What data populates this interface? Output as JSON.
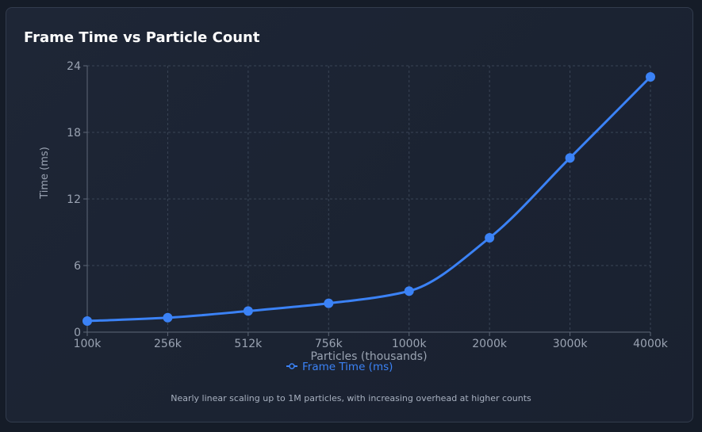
{
  "chart_data": {
    "type": "line",
    "title": "Frame Time vs Particle Count",
    "xlabel": "Particles (thousands)",
    "ylabel": "Time (ms)",
    "categories": [
      "100k",
      "256k",
      "512k",
      "756k",
      "1000k",
      "2000k",
      "3000k",
      "4000k"
    ],
    "series": [
      {
        "name": "Frame Time (ms)",
        "values": [
          1.0,
          1.3,
          1.9,
          2.6,
          3.7,
          8.5,
          15.7,
          23.0
        ]
      }
    ],
    "ylim": [
      0,
      24
    ],
    "yticks": [
      "0",
      "6",
      "12",
      "18",
      "24"
    ],
    "grid": true,
    "legend": "bottom-center",
    "caption": "Nearly linear scaling up to 1M particles, with increasing overhead at higher counts",
    "colors": {
      "series": "#3b82f6",
      "grid": "#3a4556",
      "axis": "#5e6878",
      "text": "#9aa3b2"
    }
  }
}
